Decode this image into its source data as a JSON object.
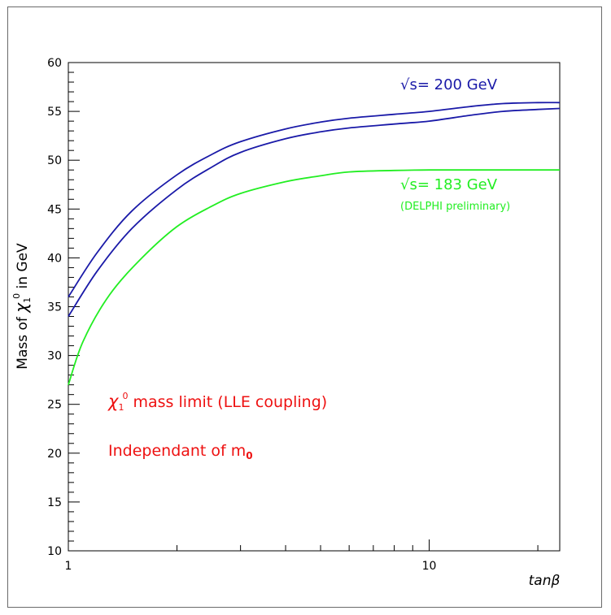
{
  "chart_data": {
    "type": "line",
    "title": "",
    "xlabel": "tanβ",
    "ylabel": {
      "prefix": "Mass of ",
      "symbol": "χ",
      "sub": "1",
      "sup": "0",
      "suffix": " in GeV"
    },
    "x_scale": "log",
    "xlim": [
      1,
      23
    ],
    "ylim": [
      10,
      60
    ],
    "x_tick_labels": [
      "1",
      "10"
    ],
    "y_tick_labels": [
      "10",
      "15",
      "20",
      "25",
      "30",
      "35",
      "40",
      "45",
      "50",
      "55",
      "60"
    ],
    "grid": false,
    "series": [
      {
        "name": "√s= 200 GeV",
        "color": "#1a1aa8",
        "x": [
          1,
          1.2,
          1.5,
          2,
          2.5,
          3,
          4,
          5,
          6,
          8,
          10,
          13,
          16,
          20,
          23
        ],
        "y": [
          36.0,
          40.5,
          44.8,
          48.5,
          50.6,
          51.9,
          53.2,
          53.9,
          54.3,
          54.7,
          55.0,
          55.5,
          55.8,
          55.9,
          55.9
        ]
      },
      {
        "name": "",
        "color": "#1a1aa8",
        "x": [
          1,
          1.2,
          1.5,
          2,
          2.5,
          3,
          4,
          5,
          6,
          8,
          10,
          13,
          16,
          20,
          23
        ],
        "y": [
          34.0,
          38.6,
          43.0,
          47.0,
          49.3,
          50.8,
          52.2,
          52.9,
          53.3,
          53.7,
          54.0,
          54.6,
          55.0,
          55.2,
          55.3
        ]
      },
      {
        "name": "√s= 183 GeV",
        "color": "#22ee22",
        "x": [
          1,
          1.1,
          1.3,
          1.6,
          2,
          2.5,
          3,
          4,
          5,
          6,
          8,
          10,
          15,
          23
        ],
        "y": [
          27.0,
          31.5,
          36.2,
          40.0,
          43.2,
          45.3,
          46.6,
          47.8,
          48.4,
          48.8,
          48.95,
          49.0,
          49.0,
          49.0
        ]
      }
    ],
    "annotations": {
      "delphi_note": "(DELPHI preliminary)",
      "limit_text": {
        "symbol": "χ",
        "sub": "1",
        "sup": "0",
        "suffix": " mass limit (LLE coupling)"
      },
      "indep_text": {
        "prefix": "Independant of m",
        "sub": "0"
      }
    }
  },
  "colors": {
    "blue": "#1a1aa8",
    "green": "#22ee22",
    "red": "#ee1111"
  }
}
